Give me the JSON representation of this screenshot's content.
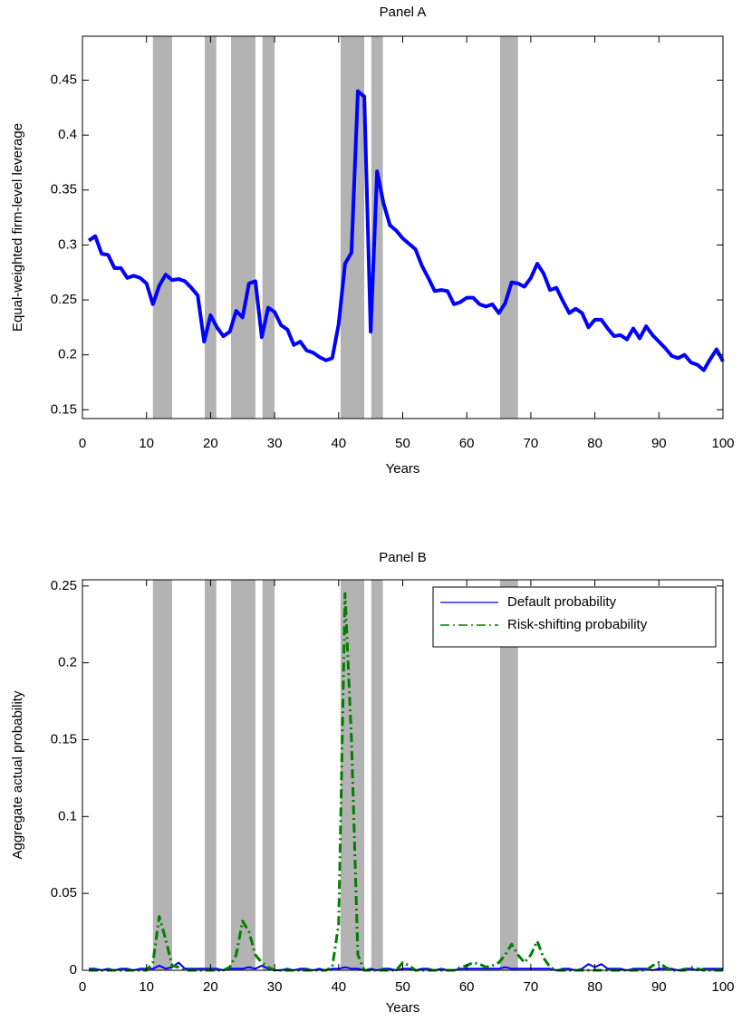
{
  "chart_data": [
    {
      "type": "line",
      "title": "Panel A",
      "x_label": "Years",
      "y_label": "Equal-weighted firm-level leverage",
      "xlim": [
        0,
        100
      ],
      "xticks": [
        0,
        10,
        20,
        30,
        40,
        50,
        60,
        70,
        80,
        90,
        100
      ],
      "ylim": [
        0.142,
        0.49
      ],
      "yticks": [
        0.15,
        0.2,
        0.25,
        0.3,
        0.35,
        0.4,
        0.45
      ],
      "shaded_regions": [
        [
          11,
          14
        ],
        [
          19.1,
          20.9
        ],
        [
          23.2,
          27
        ],
        [
          28.1,
          30
        ],
        [
          40.3,
          44
        ],
        [
          45.1,
          46.9
        ],
        [
          65.2,
          68
        ]
      ],
      "shade_color": "#b3b3b3",
      "color": "#0000ff",
      "x": [
        1,
        2,
        3,
        4,
        5,
        6,
        7,
        8,
        9,
        10,
        11,
        12,
        13,
        14,
        15,
        16,
        17,
        18,
        19,
        20,
        21,
        22,
        23,
        24,
        25,
        26,
        27,
        28,
        29,
        30,
        31,
        32,
        33,
        34,
        35,
        36,
        37,
        38,
        39,
        40,
        41,
        42,
        43,
        44,
        45,
        46,
        47,
        48,
        49,
        50,
        51,
        52,
        53,
        54,
        55,
        56,
        57,
        58,
        59,
        60,
        61,
        62,
        63,
        64,
        65,
        66,
        67,
        68,
        69,
        70,
        71,
        72,
        73,
        74,
        75,
        76,
        77,
        78,
        79,
        80,
        81,
        82,
        83,
        84,
        85,
        86,
        87,
        88,
        89,
        90,
        91,
        92,
        93,
        94,
        95,
        96,
        97,
        98,
        99,
        100
      ],
      "values": [
        0.304,
        0.308,
        0.292,
        0.291,
        0.279,
        0.279,
        0.27,
        0.272,
        0.27,
        0.265,
        0.246,
        0.263,
        0.273,
        0.268,
        0.269,
        0.267,
        0.261,
        0.254,
        0.212,
        0.236,
        0.225,
        0.217,
        0.221,
        0.24,
        0.234,
        0.265,
        0.267,
        0.216,
        0.243,
        0.239,
        0.227,
        0.223,
        0.209,
        0.212,
        0.204,
        0.202,
        0.198,
        0.195,
        0.197,
        0.228,
        0.283,
        0.293,
        0.44,
        0.435,
        0.221,
        0.367,
        0.338,
        0.318,
        0.313,
        0.306,
        0.301,
        0.296,
        0.281,
        0.27,
        0.258,
        0.259,
        0.258,
        0.246,
        0.248,
        0.252,
        0.252,
        0.246,
        0.244,
        0.246,
        0.238,
        0.247,
        0.266,
        0.265,
        0.262,
        0.27,
        0.283,
        0.274,
        0.259,
        0.261,
        0.249,
        0.238,
        0.242,
        0.238,
        0.225,
        0.232,
        0.232,
        0.224,
        0.217,
        0.218,
        0.214,
        0.224,
        0.215,
        0.226,
        0.218,
        0.212,
        0.206,
        0.199,
        0.197,
        0.2,
        0.193,
        0.191,
        0.186,
        0.196,
        0.205,
        0.194
      ]
    },
    {
      "type": "line",
      "title": "Panel B",
      "x_label": "Years",
      "y_label": "Aggregate actual probability",
      "xlim": [
        0,
        100
      ],
      "xticks": [
        0,
        10,
        20,
        30,
        40,
        50,
        60,
        70,
        80,
        90,
        100
      ],
      "ylim": [
        0,
        0.254
      ],
      "yticks": [
        0,
        0.05,
        0.1,
        0.15,
        0.2,
        0.25
      ],
      "shaded_regions": [
        [
          11,
          14
        ],
        [
          19.1,
          20.9
        ],
        [
          23.2,
          27
        ],
        [
          28.1,
          30
        ],
        [
          40.3,
          44
        ],
        [
          45.1,
          46.9
        ],
        [
          65.2,
          68
        ]
      ],
      "shade_color": "#b3b3b3",
      "legend": "upper right",
      "x": [
        1,
        2,
        3,
        4,
        5,
        6,
        7,
        8,
        9,
        10,
        11,
        12,
        13,
        14,
        15,
        16,
        17,
        18,
        19,
        20,
        21,
        22,
        23,
        24,
        25,
        26,
        27,
        28,
        29,
        30,
        31,
        32,
        33,
        34,
        35,
        36,
        37,
        38,
        39,
        40,
        41,
        42,
        43,
        44,
        45,
        46,
        47,
        48,
        49,
        50,
        51,
        52,
        53,
        54,
        55,
        56,
        57,
        58,
        59,
        60,
        61,
        62,
        63,
        64,
        65,
        66,
        67,
        68,
        69,
        70,
        71,
        72,
        73,
        74,
        75,
        76,
        77,
        78,
        79,
        80,
        81,
        82,
        83,
        84,
        85,
        86,
        87,
        88,
        89,
        90,
        91,
        92,
        93,
        94,
        95,
        96,
        97,
        98,
        99,
        100
      ],
      "series": [
        {
          "name": "Default probability",
          "color": "#0000ff",
          "style": "solid",
          "values": [
            0.001,
            0.001,
            0,
            0.001,
            0,
            0.001,
            0.001,
            0,
            0.001,
            0.001,
            0.001,
            0.003,
            0.001,
            0.002,
            0.005,
            0.001,
            0.001,
            0.001,
            0.001,
            0.001,
            0.001,
            0,
            0.001,
            0.001,
            0.001,
            0.002,
            0.001,
            0.003,
            0.001,
            0,
            0,
            0.001,
            0,
            0.001,
            0.001,
            0,
            0.001,
            0,
            0.001,
            0.001,
            0.002,
            0.001,
            0.001,
            0,
            0.001,
            0,
            0.001,
            0.001,
            0,
            0.001,
            0.001,
            0,
            0.001,
            0.001,
            0,
            0.001,
            0,
            0,
            0.001,
            0.001,
            0.001,
            0.001,
            0.001,
            0.001,
            0.001,
            0.002,
            0.001,
            0.001,
            0.001,
            0.001,
            0.001,
            0.001,
            0.001,
            0,
            0.001,
            0.001,
            0,
            0.001,
            0.004,
            0.002,
            0.004,
            0.001,
            0.001,
            0.001,
            0,
            0.001,
            0.001,
            0.001,
            0,
            0.001,
            0.001,
            0.001,
            0,
            0.001,
            0.001,
            0,
            0.001,
            0.001,
            0.001,
            0.001
          ]
        },
        {
          "name": "Risk-shifting probability",
          "color": "#007f00",
          "style": "dashdot",
          "values": [
            0,
            0,
            0,
            0,
            0,
            0,
            0,
            0,
            0,
            0,
            0.005,
            0.035,
            0.02,
            0.003,
            0.002,
            0,
            0,
            0,
            0,
            0,
            0,
            0,
            0.002,
            0.01,
            0.032,
            0.025,
            0.01,
            0.005,
            0.002,
            0,
            0,
            0,
            0,
            0,
            0,
            0,
            0,
            0,
            0.002,
            0.03,
            0.245,
            0.15,
            0.01,
            0,
            0,
            0,
            0,
            0,
            0,
            0.005,
            0.003,
            0,
            0,
            0,
            0,
            0,
            0,
            0,
            0.002,
            0.003,
            0.005,
            0.004,
            0.002,
            0.003,
            0.005,
            0.01,
            0.017,
            0.01,
            0.005,
            0.01,
            0.019,
            0.008,
            0.002,
            0,
            0,
            0,
            0,
            0,
            0,
            0,
            0,
            0,
            0,
            0,
            0,
            0,
            0,
            0,
            0.003,
            0.005,
            0.002,
            0,
            0,
            0,
            0.002,
            0.001,
            0,
            0,
            0,
            0
          ]
        }
      ]
    }
  ]
}
